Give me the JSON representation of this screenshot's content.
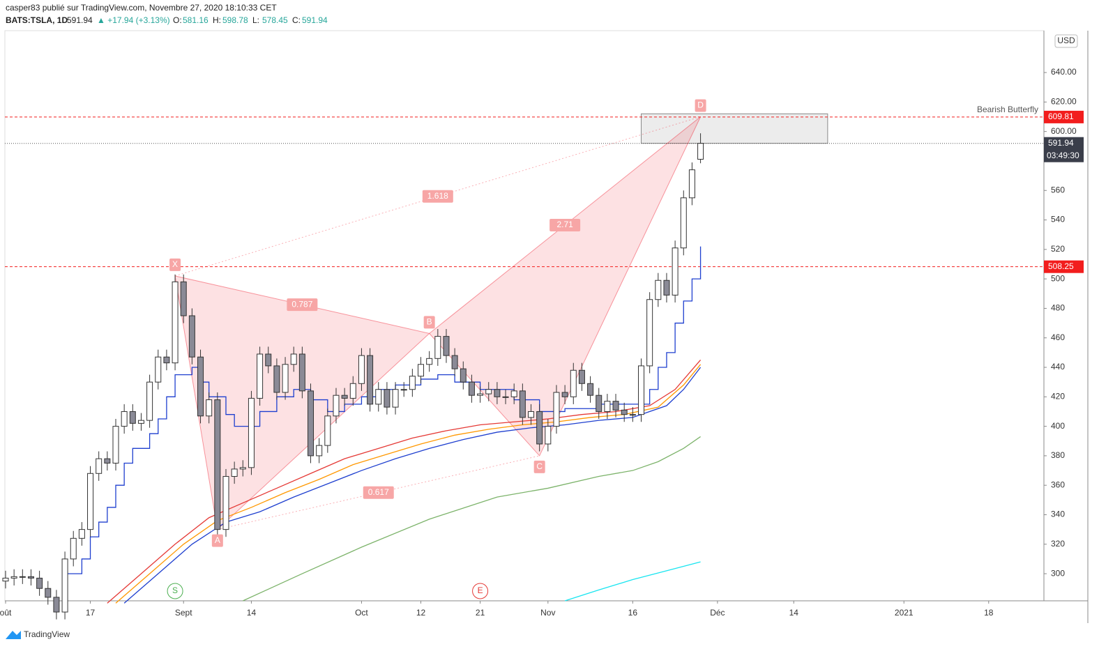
{
  "header": {
    "publisher": "casper83 publié sur TradingView.com, Novembre 27, 2020 18:10:33 CET",
    "symbol": "BATS:TSLA, 1D",
    "last": "591.94",
    "change": "▲ +17.94 (+3.13%)",
    "ohlc": [
      {
        "k": "O:",
        "v": "581.16"
      },
      {
        "k": "H:",
        "v": "598.78"
      },
      {
        "k": "L:",
        "v": "578.45"
      },
      {
        "k": "C:",
        "v": "591.94"
      }
    ]
  },
  "chart_data": {
    "type": "candlestick",
    "currency": "USD",
    "xlim": [
      0,
      122.6
    ],
    "ylim": [
      281.6,
      668.4
    ],
    "xticks": [
      {
        "value": 0,
        "label": "oût"
      },
      {
        "value": 10,
        "label": "17"
      },
      {
        "value": 21,
        "label": "Sept"
      },
      {
        "value": 29,
        "label": "14"
      },
      {
        "value": 42,
        "label": "Oct"
      },
      {
        "value": 49,
        "label": "12"
      },
      {
        "value": 56,
        "label": "21"
      },
      {
        "value": 64,
        "label": "Nov"
      },
      {
        "value": 74,
        "label": "16"
      },
      {
        "value": 84,
        "label": "Déc"
      },
      {
        "value": 93,
        "label": "14"
      },
      {
        "value": 106,
        "label": "2021"
      },
      {
        "value": 116,
        "label": "18"
      }
    ],
    "yticks": [
      300,
      320,
      340,
      360,
      380,
      400,
      420,
      440,
      460,
      480,
      500,
      520,
      540,
      560,
      {
        "value": 600,
        "label": "600.00"
      },
      {
        "value": 620,
        "label": "620.00"
      },
      {
        "value": 640,
        "label": "640.00"
      }
    ],
    "open": [
      295,
      297,
      298,
      298,
      297,
      290,
      284,
      274,
      310,
      324,
      330,
      368,
      378,
      375,
      400,
      410,
      402,
      404,
      430,
      447,
      443,
      498,
      475,
      447,
      407,
      418,
      330,
      366,
      371,
      372,
      419,
      449,
      441,
      423,
      442,
      449,
      424,
      380,
      387,
      407,
      421,
      419,
      429,
      448,
      415,
      425,
      413,
      425,
      425,
      434,
      442,
      446,
      461,
      448,
      439,
      430,
      421,
      422,
      425,
      420,
      420,
      424,
      406,
      410,
      388,
      400,
      423,
      420,
      438,
      429,
      421,
      410,
      417,
      411,
      408,
      408,
      441,
      486,
      499,
      489,
      521,
      555,
      581.16
    ],
    "high": [
      302,
      303,
      303,
      303,
      302,
      295,
      289,
      315,
      329,
      335,
      373,
      383,
      383,
      405,
      415,
      415,
      409,
      435,
      452,
      452,
      503,
      503,
      480,
      452,
      423,
      423,
      371,
      376,
      377,
      424,
      454,
      454,
      446,
      447,
      454,
      454,
      429,
      392,
      412,
      426,
      426,
      434,
      453,
      453,
      430,
      430,
      430,
      430,
      439,
      447,
      451,
      466,
      466,
      453,
      444,
      435,
      427,
      430,
      430,
      425,
      429,
      429,
      415,
      415,
      405,
      428,
      428,
      443,
      443,
      434,
      426,
      422,
      422,
      416,
      413,
      446,
      491,
      504,
      504,
      526,
      560,
      579,
      598.78
    ],
    "low": [
      290,
      292,
      293,
      292,
      285,
      279,
      269,
      269,
      305,
      319,
      325,
      363,
      370,
      370,
      395,
      397,
      397,
      399,
      425,
      438,
      438,
      470,
      442,
      402,
      402,
      325,
      325,
      361,
      366,
      367,
      414,
      436,
      418,
      418,
      437,
      419,
      375,
      375,
      382,
      402,
      414,
      414,
      424,
      410,
      410,
      408,
      408,
      420,
      420,
      429,
      437,
      441,
      443,
      434,
      425,
      416,
      416,
      417,
      415,
      415,
      415,
      401,
      401,
      383,
      383,
      395,
      415,
      415,
      424,
      416,
      405,
      405,
      406,
      403,
      403,
      403,
      436,
      481,
      484,
      484,
      516,
      550,
      578.45
    ],
    "close": [
      297,
      298,
      298,
      297,
      290,
      284,
      274,
      310,
      324,
      330,
      368,
      378,
      375,
      400,
      410,
      402,
      404,
      430,
      447,
      443,
      498,
      475,
      447,
      407,
      418,
      330,
      366,
      371,
      372,
      419,
      449,
      441,
      423,
      442,
      449,
      424,
      380,
      387,
      407,
      421,
      419,
      429,
      448,
      415,
      425,
      413,
      425,
      425,
      434,
      442,
      446,
      461,
      448,
      439,
      430,
      421,
      422,
      425,
      420,
      420,
      424,
      406,
      410,
      388,
      400,
      423,
      420,
      438,
      429,
      421,
      410,
      417,
      411,
      408,
      408,
      441,
      486,
      499,
      489,
      521,
      555,
      574,
      591.94
    ],
    "overlays": [
      {
        "color": "#e53935",
        "x": [
          12,
          16,
          20,
          24,
          28,
          32,
          36,
          40,
          44,
          48,
          52,
          56,
          60,
          64,
          68,
          72,
          76,
          79,
          82
        ],
        "values": [
          280,
          300,
          320,
          338,
          348,
          358,
          368,
          378,
          385,
          392,
          397,
          401,
          403,
          405,
          408,
          410,
          414,
          425,
          445
        ]
      },
      {
        "color": "#ff9800",
        "x": [
          13,
          17,
          21,
          25,
          29,
          33,
          37,
          41,
          45,
          49,
          53,
          57,
          61,
          65,
          69,
          73,
          77,
          80,
          82
        ],
        "values": [
          280,
          300,
          320,
          336,
          345,
          355,
          364,
          374,
          381,
          388,
          394,
          398,
          401,
          403,
          406,
          408,
          413,
          428,
          442
        ]
      },
      {
        "color": "#1e3fcf",
        "x": [
          14,
          18,
          22,
          26,
          30,
          34,
          38,
          42,
          46,
          50,
          54,
          58,
          62,
          66,
          70,
          74,
          78,
          80,
          82
        ],
        "values": [
          280,
          300,
          320,
          335,
          342,
          352,
          361,
          370,
          378,
          385,
          391,
          396,
          399,
          401,
          404,
          406,
          414,
          425,
          440
        ]
      },
      {
        "color": "#7cb36a",
        "x": [
          28,
          35,
          42,
          50,
          58,
          64,
          70,
          74,
          77,
          80,
          82
        ],
        "values": [
          281.6,
          300,
          318,
          337,
          352,
          358,
          366,
          370,
          376,
          385,
          393
        ]
      },
      {
        "color": "#18e5f0",
        "x": [
          66,
          70,
          74,
          78,
          82
        ],
        "values": [
          281.6,
          289,
          296,
          302,
          308
        ]
      }
    ],
    "stepline": {
      "color": "#1e3fcf",
      "x": [
        7,
        9,
        10,
        11,
        12,
        13,
        14,
        15,
        17,
        18,
        19,
        20,
        22,
        23,
        24,
        26,
        27,
        30,
        32,
        34,
        36,
        38,
        40,
        42,
        44,
        46,
        49,
        51,
        53,
        56,
        60,
        63,
        66,
        70,
        74,
        76,
        77,
        78,
        79,
        80,
        81,
        82
      ],
      "values": [
        300,
        310,
        325,
        335,
        345,
        360,
        375,
        385,
        395,
        405,
        420,
        435,
        440,
        430,
        420,
        408,
        400,
        410,
        420,
        425,
        418,
        410,
        415,
        420,
        425,
        428,
        432,
        435,
        430,
        425,
        418,
        410,
        412,
        415,
        415,
        425,
        440,
        450,
        470,
        485,
        500,
        522
      ]
    },
    "pattern": {
      "name": "Bearish Butterfly",
      "points": [
        {
          "label": "X",
          "x": 20,
          "y": 502
        },
        {
          "label": "A",
          "x": 25,
          "y": 330
        },
        {
          "label": "B",
          "x": 50,
          "y": 463
        },
        {
          "label": "C",
          "x": 63,
          "y": 380
        },
        {
          "label": "D",
          "x": 82,
          "y": 610
        }
      ],
      "ratios": [
        "0.787",
        "1.618",
        "2.71",
        "0.617"
      ]
    },
    "zone": {
      "x": [
        75,
        97
      ],
      "y": [
        592,
        612
      ]
    },
    "levels": [
      {
        "value": 609.81,
        "label": "609.81",
        "color": "#f21d1d"
      },
      {
        "value": 508.25,
        "label": "508.25",
        "color": "#f21d1d"
      }
    ],
    "last_price": {
      "value": 591.94,
      "label": "591.94",
      "countdown": "03:49:30"
    },
    "events": [
      {
        "label": "S",
        "x": 20,
        "color": "#4caf50"
      },
      {
        "label": "E",
        "x": 56,
        "color": "#e53935"
      }
    ],
    "footer": "TradingView"
  }
}
